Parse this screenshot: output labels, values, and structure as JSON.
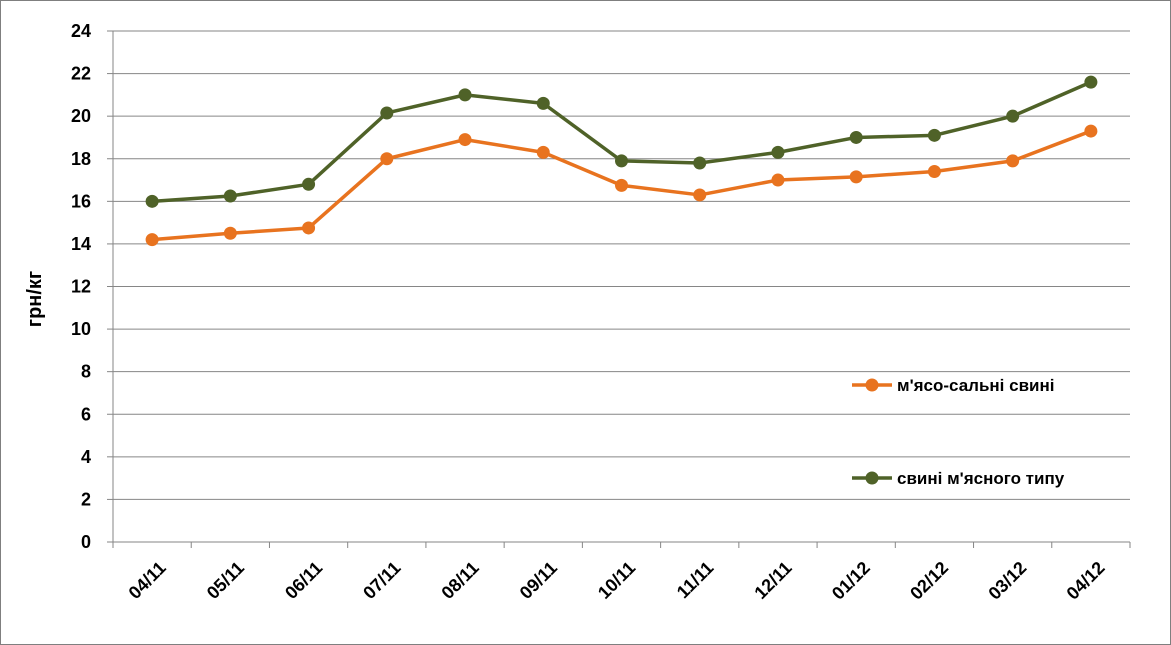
{
  "chart_data": {
    "type": "line",
    "ylabel": "грн/кг",
    "xlabel": "",
    "ylim": [
      0,
      24
    ],
    "y_ticks": [
      "0",
      "2",
      "4",
      "6",
      "8",
      "10",
      "12",
      "14",
      "16",
      "18",
      "20",
      "22",
      "24"
    ],
    "categories": [
      "04/11",
      "05/11",
      "06/11",
      "07/11",
      "08/11",
      "09/11",
      "10/11",
      "11/11",
      "12/11",
      "01/12",
      "02/12",
      "03/12",
      "04/12"
    ],
    "grid": true,
    "legend_position": "right",
    "series": [
      {
        "name": "м'ясо-сальні свині",
        "color": "#e8731f",
        "values": [
          14.2,
          14.5,
          14.75,
          18.0,
          18.9,
          18.3,
          16.75,
          16.3,
          17.0,
          17.15,
          17.4,
          17.9,
          19.3
        ]
      },
      {
        "name": "свині м'ясного типу",
        "color": "#4f6228",
        "values": [
          16.0,
          16.25,
          16.8,
          20.15,
          21.0,
          20.6,
          17.9,
          17.8,
          18.3,
          19.0,
          19.1,
          20.0,
          21.6
        ]
      }
    ]
  }
}
